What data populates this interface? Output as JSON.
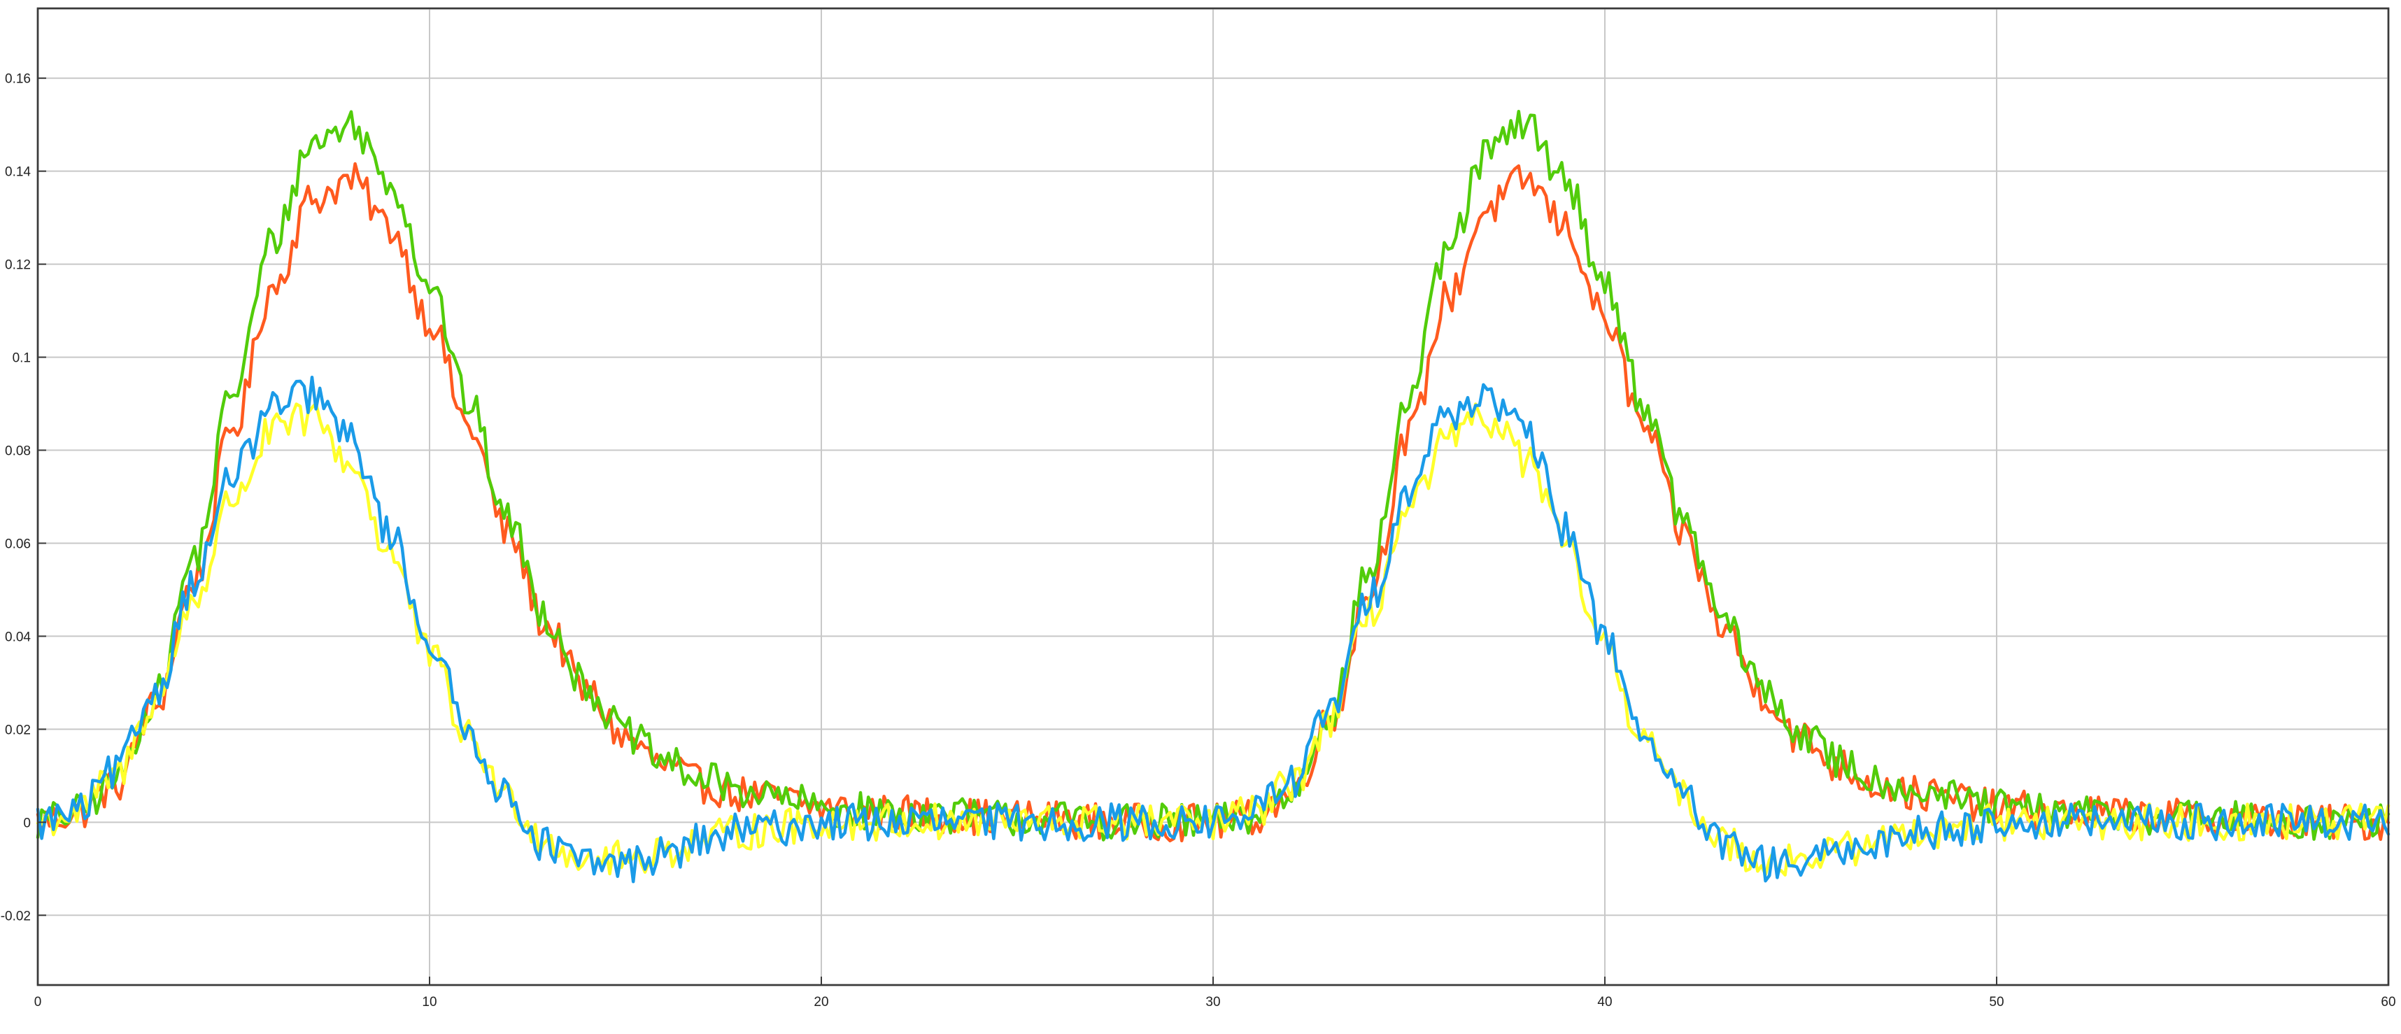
{
  "chart_data": {
    "type": "line",
    "title": "",
    "xlabel": "",
    "ylabel": "",
    "xlim": [
      0,
      60
    ],
    "ylim": [
      -0.035,
      0.175
    ],
    "grid": true,
    "legend": "none",
    "x_ticks": [
      0,
      10,
      20,
      30,
      40,
      50,
      60
    ],
    "x_tick_labels": [
      "0",
      "10",
      "20",
      "30",
      "40",
      "50",
      "60"
    ],
    "y_ticks": [
      -0.02,
      0,
      0.02,
      0.04,
      0.06,
      0.08,
      0.1,
      0.12,
      0.14,
      0.16
    ],
    "y_tick_labels": [
      "-0.02",
      "0",
      "0.02",
      "0.04",
      "0.06",
      "0.08",
      "0.1",
      "0.12",
      "0.14",
      "0.16"
    ],
    "noise_amplitude": 0.004,
    "series": [
      {
        "color": "#ff5a1f",
        "points": [
          [
            0,
            0
          ],
          [
            1,
            0.002
          ],
          [
            2,
            0.008
          ],
          [
            3,
            0.025
          ],
          [
            4,
            0.052
          ],
          [
            5,
            0.085
          ],
          [
            6,
            0.115
          ],
          [
            7,
            0.134
          ],
          [
            8,
            0.138
          ],
          [
            9,
            0.128
          ],
          [
            10,
            0.108
          ],
          [
            11,
            0.085
          ],
          [
            12,
            0.062
          ],
          [
            13,
            0.042
          ],
          [
            14,
            0.028
          ],
          [
            15,
            0.018
          ],
          [
            16,
            0.012
          ],
          [
            17,
            0.008
          ],
          [
            18,
            0.006
          ],
          [
            19,
            0.005
          ],
          [
            20,
            0.003
          ],
          [
            22,
            0.002
          ],
          [
            25,
            0.001
          ],
          [
            28,
            0
          ],
          [
            30,
            0
          ],
          [
            31,
            0.001
          ],
          [
            32,
            0.006
          ],
          [
            33,
            0.022
          ],
          [
            34,
            0.05
          ],
          [
            35,
            0.083
          ],
          [
            36,
            0.113
          ],
          [
            37,
            0.132
          ],
          [
            38,
            0.138
          ],
          [
            39,
            0.128
          ],
          [
            40,
            0.108
          ],
          [
            41,
            0.085
          ],
          [
            42,
            0.062
          ],
          [
            43,
            0.042
          ],
          [
            44,
            0.028
          ],
          [
            45,
            0.018
          ],
          [
            46,
            0.012
          ],
          [
            47,
            0.008
          ],
          [
            48,
            0.006
          ],
          [
            49,
            0.005
          ],
          [
            50,
            0.003
          ],
          [
            52,
            0.002
          ],
          [
            55,
            0.001
          ],
          [
            58,
            0
          ],
          [
            60,
            0
          ]
        ]
      },
      {
        "color": "#52cc0a",
        "points": [
          [
            0,
            0
          ],
          [
            1,
            0.002
          ],
          [
            2,
            0.009
          ],
          [
            3,
            0.027
          ],
          [
            4,
            0.057
          ],
          [
            5,
            0.093
          ],
          [
            6,
            0.125
          ],
          [
            7,
            0.146
          ],
          [
            8,
            0.15
          ],
          [
            9,
            0.138
          ],
          [
            10,
            0.116
          ],
          [
            11,
            0.09
          ],
          [
            12,
            0.065
          ],
          [
            13,
            0.044
          ],
          [
            14,
            0.029
          ],
          [
            15,
            0.019
          ],
          [
            16,
            0.013
          ],
          [
            17,
            0.009
          ],
          [
            18,
            0.007
          ],
          [
            19,
            0.005
          ],
          [
            20,
            0.003
          ],
          [
            22,
            0.002
          ],
          [
            25,
            0.001
          ],
          [
            28,
            0
          ],
          [
            30,
            0
          ],
          [
            31,
            0.001
          ],
          [
            32,
            0.006
          ],
          [
            33,
            0.024
          ],
          [
            34,
            0.054
          ],
          [
            35,
            0.091
          ],
          [
            36,
            0.123
          ],
          [
            37,
            0.144
          ],
          [
            38,
            0.15
          ],
          [
            39,
            0.138
          ],
          [
            40,
            0.116
          ],
          [
            41,
            0.09
          ],
          [
            42,
            0.065
          ],
          [
            43,
            0.044
          ],
          [
            44,
            0.029
          ],
          [
            45,
            0.019
          ],
          [
            46,
            0.013
          ],
          [
            47,
            0.009
          ],
          [
            48,
            0.007
          ],
          [
            49,
            0.005
          ],
          [
            50,
            0.003
          ],
          [
            52,
            0.002
          ],
          [
            55,
            0.001
          ],
          [
            58,
            0
          ],
          [
            60,
            0
          ]
        ]
      },
      {
        "color": "#ffff2a",
        "points": [
          [
            0,
            0
          ],
          [
            1,
            0.002
          ],
          [
            2,
            0.01
          ],
          [
            3,
            0.026
          ],
          [
            4,
            0.048
          ],
          [
            5,
            0.07
          ],
          [
            6,
            0.084
          ],
          [
            7,
            0.087
          ],
          [
            8,
            0.077
          ],
          [
            9,
            0.058
          ],
          [
            10,
            0.036
          ],
          [
            11,
            0.018
          ],
          [
            12,
            0.005
          ],
          [
            13,
            -0.004
          ],
          [
            14,
            -0.008
          ],
          [
            15,
            -0.008
          ],
          [
            16,
            -0.006
          ],
          [
            17,
            -0.004
          ],
          [
            18,
            -0.002
          ],
          [
            19,
            -0.001
          ],
          [
            20,
            0
          ],
          [
            25,
            0
          ],
          [
            30,
            0
          ],
          [
            31,
            0.002
          ],
          [
            32,
            0.008
          ],
          [
            33,
            0.022
          ],
          [
            34,
            0.045
          ],
          [
            35,
            0.067
          ],
          [
            36,
            0.082
          ],
          [
            37,
            0.087
          ],
          [
            38,
            0.078
          ],
          [
            39,
            0.059
          ],
          [
            40,
            0.037
          ],
          [
            41,
            0.018
          ],
          [
            42,
            0.005
          ],
          [
            43,
            -0.004
          ],
          [
            44,
            -0.008
          ],
          [
            45,
            -0.008
          ],
          [
            46,
            -0.006
          ],
          [
            47,
            -0.004
          ],
          [
            48,
            -0.002
          ],
          [
            49,
            -0.001
          ],
          [
            50,
            0
          ],
          [
            55,
            0
          ],
          [
            60,
            0
          ]
        ]
      },
      {
        "color": "#1a9be8",
        "points": [
          [
            0,
            0
          ],
          [
            1,
            0.002
          ],
          [
            2,
            0.011
          ],
          [
            3,
            0.028
          ],
          [
            4,
            0.052
          ],
          [
            5,
            0.075
          ],
          [
            6,
            0.089
          ],
          [
            7,
            0.092
          ],
          [
            8,
            0.082
          ],
          [
            9,
            0.062
          ],
          [
            10,
            0.039
          ],
          [
            11,
            0.019
          ],
          [
            12,
            0.005
          ],
          [
            13,
            -0.005
          ],
          [
            14,
            -0.009
          ],
          [
            15,
            -0.009
          ],
          [
            16,
            -0.007
          ],
          [
            17,
            -0.004
          ],
          [
            18,
            -0.002
          ],
          [
            19,
            -0.001
          ],
          [
            20,
            0
          ],
          [
            25,
            0
          ],
          [
            30,
            0
          ],
          [
            31,
            0.002
          ],
          [
            32,
            0.009
          ],
          [
            33,
            0.024
          ],
          [
            34,
            0.048
          ],
          [
            35,
            0.072
          ],
          [
            36,
            0.088
          ],
          [
            37,
            0.092
          ],
          [
            38,
            0.083
          ],
          [
            39,
            0.063
          ],
          [
            40,
            0.04
          ],
          [
            41,
            0.019
          ],
          [
            42,
            0.005
          ],
          [
            43,
            -0.005
          ],
          [
            44,
            -0.009
          ],
          [
            45,
            -0.009
          ],
          [
            46,
            -0.007
          ],
          [
            47,
            -0.004
          ],
          [
            48,
            -0.002
          ],
          [
            49,
            -0.001
          ],
          [
            50,
            0
          ],
          [
            55,
            0
          ],
          [
            60,
            0
          ]
        ]
      }
    ]
  }
}
